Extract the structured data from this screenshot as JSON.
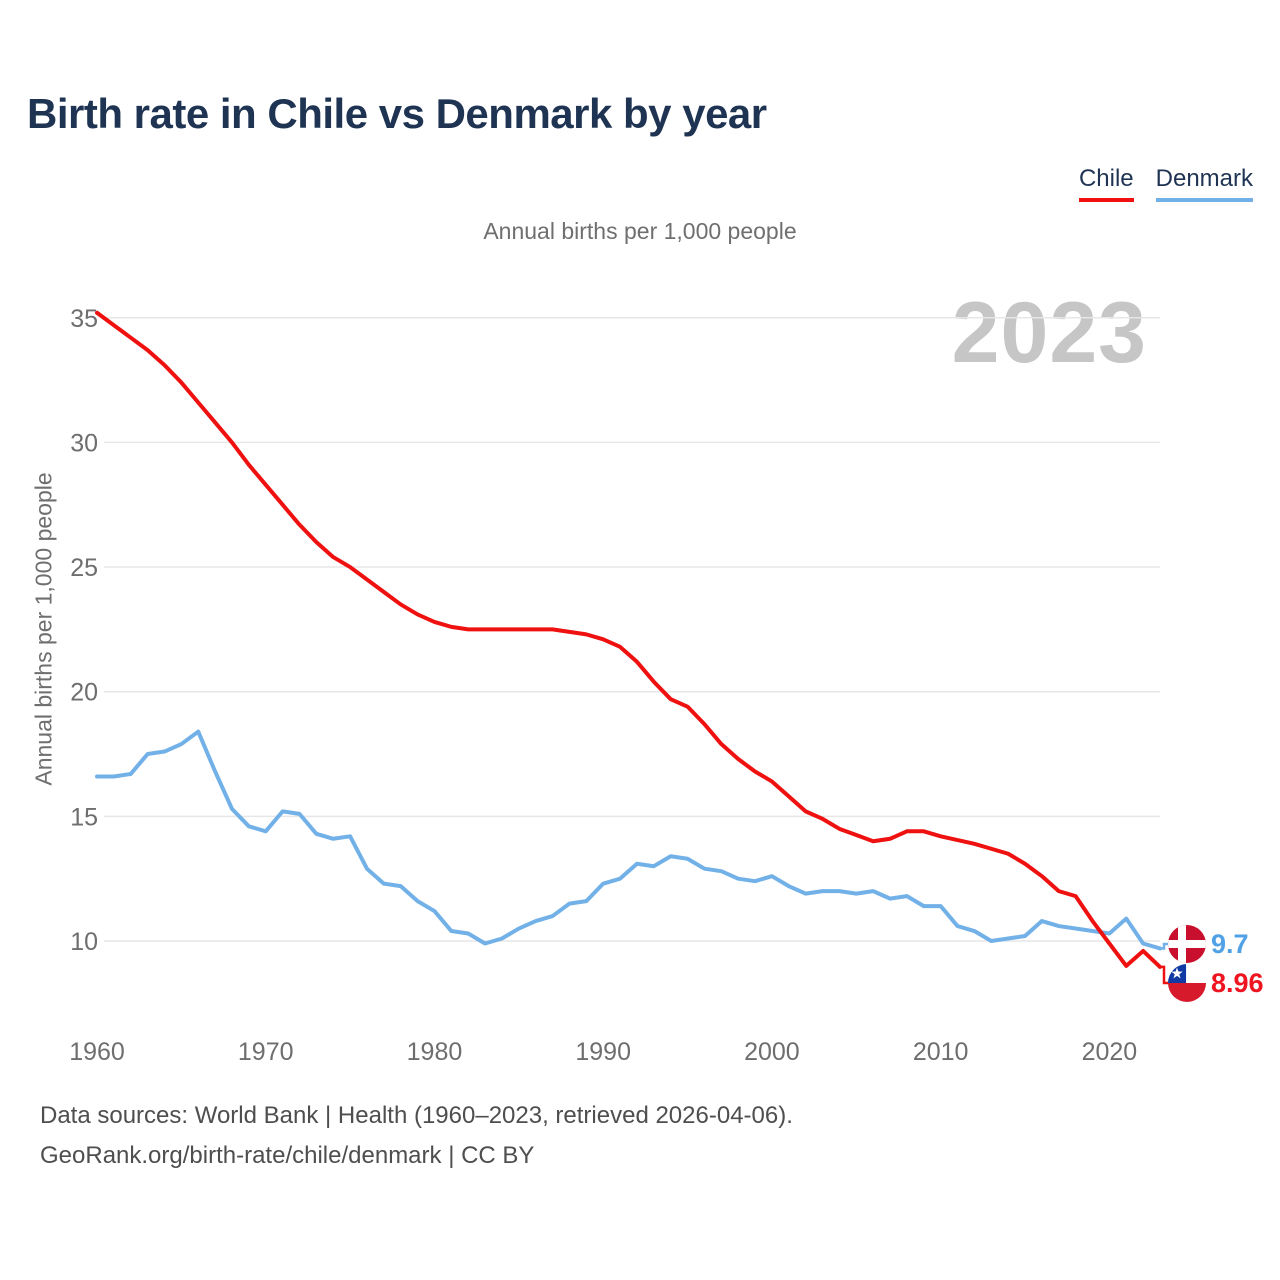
{
  "header": {
    "title": "Birth rate in Chile vs Denmark by year",
    "subtitle": "Annual births per 1,000 people"
  },
  "legend": [
    {
      "label": "Chile",
      "color": "#ef1010"
    },
    {
      "label": "Denmark",
      "color": "#72b1e7"
    }
  ],
  "watermark": "2023",
  "footer": {
    "line1": "Data sources: World Bank | Health (1960–2023, retrieved 2026-04-06).",
    "line2": "GeoRank.org/birth-rate/chile/denmark | CC BY"
  },
  "end_labels": [
    {
      "series": "Denmark",
      "value": "9.7",
      "flag": "denmark",
      "label_color": "#50a1e6"
    },
    {
      "series": "Chile",
      "value": "8.96",
      "flag": "chile",
      "label_color": "#ee1520"
    }
  ],
  "flag_colors": {
    "denmark_red": "#c8102e",
    "chile_red": "#d7192c",
    "chile_blue": "#1039a3",
    "white": "#ffffff"
  },
  "chart_data": {
    "type": "line",
    "title": "Birth rate in Chile vs Denmark by year",
    "ylabel": "Annual births per 1,000 people",
    "xlabel": "",
    "grid": "horizontal",
    "legend_position": "top-right",
    "xlim": [
      1960,
      2023
    ],
    "ylim": [
      10,
      35
    ],
    "xticks": [
      1960,
      1970,
      1980,
      1990,
      2000,
      2010,
      2020
    ],
    "yticks": [
      10,
      15,
      20,
      25,
      30,
      35
    ],
    "years": [
      1960,
      1961,
      1962,
      1963,
      1964,
      1965,
      1966,
      1967,
      1968,
      1969,
      1970,
      1971,
      1972,
      1973,
      1974,
      1975,
      1976,
      1977,
      1978,
      1979,
      1980,
      1981,
      1982,
      1983,
      1984,
      1985,
      1986,
      1987,
      1988,
      1989,
      1990,
      1991,
      1992,
      1993,
      1994,
      1995,
      1996,
      1997,
      1998,
      1999,
      2000,
      2001,
      2002,
      2003,
      2004,
      2005,
      2006,
      2007,
      2008,
      2009,
      2010,
      2011,
      2012,
      2013,
      2014,
      2015,
      2016,
      2017,
      2018,
      2019,
      2020,
      2021,
      2022,
      2023
    ],
    "series": [
      {
        "name": "Denmark",
        "color": "#72b1e7",
        "final_value": 9.7,
        "values": [
          16.6,
          16.6,
          16.7,
          17.5,
          17.6,
          17.9,
          18.4,
          16.8,
          15.3,
          14.6,
          14.4,
          15.2,
          15.1,
          14.3,
          14.1,
          14.2,
          12.9,
          12.3,
          12.2,
          11.6,
          11.2,
          10.4,
          10.3,
          9.9,
          10.1,
          10.5,
          10.8,
          11.0,
          11.5,
          11.6,
          12.3,
          12.5,
          13.1,
          13.0,
          13.4,
          13.3,
          12.9,
          12.8,
          12.5,
          12.4,
          12.6,
          12.2,
          11.9,
          12.0,
          12.0,
          11.9,
          12.0,
          11.7,
          11.8,
          11.4,
          11.4,
          10.6,
          10.4,
          10.0,
          10.1,
          10.2,
          10.8,
          10.6,
          10.5,
          10.4,
          10.3,
          10.9,
          9.9,
          9.7
        ]
      },
      {
        "name": "Chile",
        "color": "#ef1010",
        "final_value": 8.96,
        "values": [
          35.2,
          34.7,
          34.2,
          33.7,
          33.1,
          32.4,
          31.6,
          30.8,
          30.0,
          29.1,
          28.3,
          27.5,
          26.7,
          26.0,
          25.4,
          25.0,
          24.5,
          24.0,
          23.5,
          23.1,
          22.8,
          22.6,
          22.5,
          22.5,
          22.5,
          22.5,
          22.5,
          22.5,
          22.4,
          22.3,
          22.1,
          21.8,
          21.2,
          20.4,
          19.7,
          19.4,
          18.7,
          17.9,
          17.3,
          16.8,
          16.4,
          15.8,
          15.2,
          14.9,
          14.5,
          14.25,
          14.0,
          14.1,
          14.4,
          14.4,
          14.2,
          14.05,
          13.9,
          13.7,
          13.5,
          13.1,
          12.6,
          12.0,
          11.8,
          10.8,
          9.9,
          9.0,
          9.6,
          8.96
        ]
      }
    ]
  }
}
